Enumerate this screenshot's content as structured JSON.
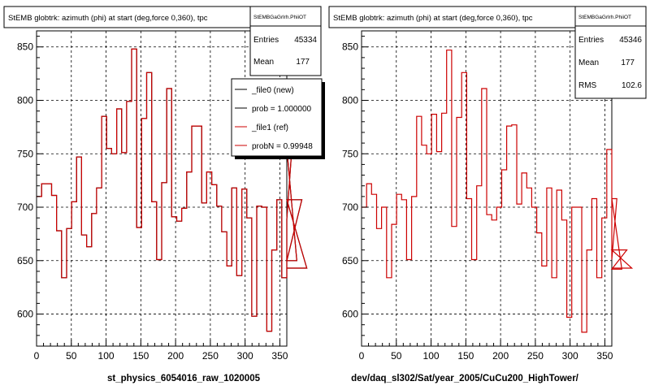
{
  "chart_data": [
    {
      "type": "histogram",
      "title": "StEMB globtrk: azimuth (phi) at start (deg,force 0,360), tpc",
      "stats_title": "StEMBGaGrlrh.PhiiOT",
      "stats": [
        {
          "label": "Entries",
          "value": "45334"
        },
        {
          "label": "Mean",
          "value": "177"
        }
      ],
      "legend": [
        {
          "label": "_file0 (new)",
          "color": "#000000"
        },
        {
          "label": "prob = 1.000000",
          "color": "#000000"
        },
        {
          "label": "_file1 (ref)",
          "color": "#cc0000"
        },
        {
          "label": "probN = 0.99948",
          "color": "#cc0000"
        }
      ],
      "xlabel": "st_physics_6054016_raw_1020005",
      "xlim": [
        0,
        360
      ],
      "ylim": [
        570,
        865
      ],
      "xticks": [
        0,
        50,
        100,
        150,
        200,
        250,
        300,
        350
      ],
      "yticks": [
        600,
        650,
        700,
        750,
        800,
        850
      ],
      "bin_width": 7.2,
      "series": [
        {
          "color": "#000000",
          "values": [
            710,
            722,
            722,
            711,
            678,
            634,
            680,
            705,
            747,
            674,
            663,
            694,
            718,
            785,
            755,
            750,
            792,
            751,
            799,
            848,
            681,
            783,
            826,
            705,
            651,
            723,
            811,
            691,
            687,
            699,
            733,
            776,
            776,
            704,
            733,
            721,
            701,
            677,
            645,
            718,
            636,
            717,
            690,
            598,
            701,
            700,
            584,
            660,
            707,
            634,
            689,
            755,
            650,
            707,
            643
          ]
        },
        {
          "color": "#cc0000",
          "values": [
            710,
            722,
            722,
            711,
            678,
            634,
            680,
            705,
            747,
            674,
            663,
            694,
            718,
            785,
            755,
            750,
            792,
            751,
            799,
            848,
            681,
            783,
            826,
            705,
            651,
            723,
            811,
            691,
            687,
            699,
            733,
            776,
            776,
            704,
            733,
            721,
            701,
            677,
            645,
            718,
            636,
            717,
            690,
            598,
            701,
            700,
            584,
            660,
            707,
            634,
            689,
            755,
            650,
            707,
            643
          ]
        }
      ]
    },
    {
      "type": "histogram",
      "title": "StEMB globtrk: azimuth (phi) at start (deg,force 0,360), tpc",
      "stats_title": "StEMBGaGrlrh.PhiiOT",
      "stats": [
        {
          "label": "Entries",
          "value": "45346"
        },
        {
          "label": "Mean",
          "value": "177"
        },
        {
          "label": "RMS",
          "value": "102.6"
        }
      ],
      "legend": [],
      "xlabel": "dev/daq_sl302/Sat/year_2005/CuCu200_HighTower/",
      "xlim": [
        0,
        360
      ],
      "ylim": [
        570,
        865
      ],
      "xticks": [
        0,
        50,
        100,
        150,
        200,
        250,
        300,
        350
      ],
      "yticks": [
        600,
        650,
        700,
        750,
        800,
        850
      ],
      "bin_width": 7.2,
      "series": [
        {
          "color": "#cc0000",
          "values": [
            700,
            722,
            712,
            680,
            700,
            634,
            684,
            712,
            707,
            651,
            710,
            785,
            758,
            750,
            787,
            752,
            788,
            847,
            682,
            784,
            826,
            708,
            651,
            720,
            811,
            693,
            688,
            700,
            735,
            776,
            777,
            703,
            732,
            718,
            700,
            676,
            645,
            718,
            634,
            716,
            688,
            597,
            700,
            700,
            583,
            660,
            708,
            634,
            690,
            754,
            651,
            708,
            642,
            660,
            643
          ]
        }
      ]
    }
  ]
}
